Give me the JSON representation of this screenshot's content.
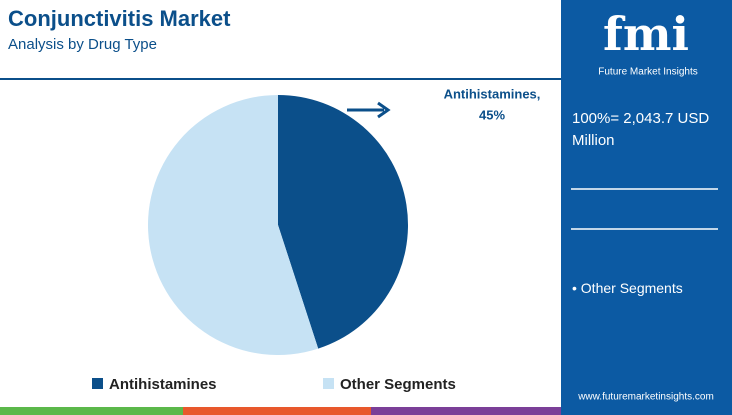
{
  "chart_data": {
    "type": "pie",
    "title": "Conjunctivitis Market",
    "subtitle": "Analysis by Drug Type",
    "categories": [
      "Antihistamines",
      "Other Segments"
    ],
    "values": [
      45,
      55
    ],
    "value_labels": [
      "45%",
      null
    ],
    "colors": [
      "#0b4f8a",
      "#c6e2f4"
    ],
    "annotation": "Antihistamines,",
    "total_label": "100%= 2,043.7 USD Million",
    "legend": "bottom"
  },
  "brand": {
    "logo": "fmi",
    "name": "Future Market Insights",
    "website": "www.futuremarketinsights.com"
  }
}
